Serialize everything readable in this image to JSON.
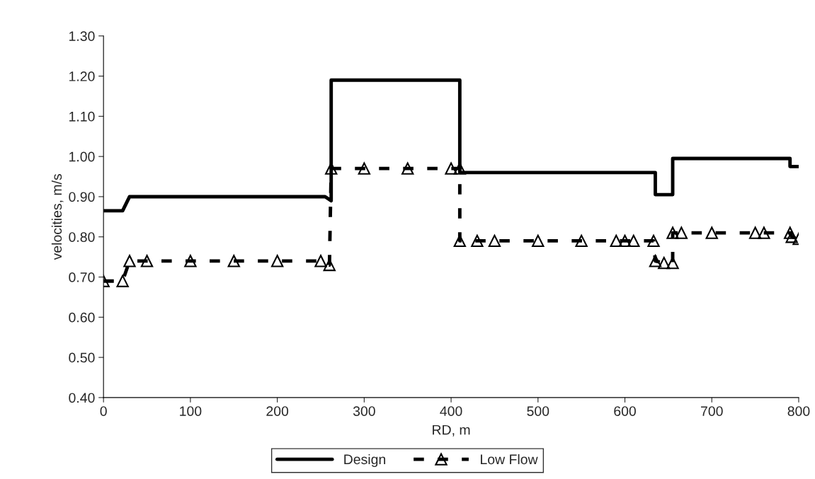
{
  "chart_data": {
    "type": "line",
    "xlabel": "RD, m",
    "ylabel": "velocities, m/s",
    "xlim": [
      0,
      800
    ],
    "xticks": [
      0,
      100,
      200,
      300,
      400,
      500,
      600,
      700,
      800
    ],
    "ylim": [
      0.4,
      1.3
    ],
    "yticks": [
      {
        "value": 0.4,
        "label": "0.40"
      },
      {
        "value": 0.5,
        "label": "0.50"
      },
      {
        "value": 0.6,
        "label": "0.60"
      },
      {
        "value": 0.7,
        "label": "0.70"
      },
      {
        "value": 0.8,
        "label": "0.80"
      },
      {
        "value": 0.9,
        "label": "0.90"
      },
      {
        "value": 1.0,
        "label": "1.00"
      },
      {
        "value": 1.1,
        "label": "1.10"
      },
      {
        "value": 1.2,
        "label": "1.20"
      },
      {
        "value": 1.3,
        "label": "1.30"
      }
    ],
    "legend": "bottom",
    "series": [
      {
        "name": "Design",
        "color": "#000000",
        "line_style": "solid",
        "marker": "none",
        "x": [
          0,
          22,
          30,
          255,
          262,
          262,
          410,
          410,
          635,
          635,
          655,
          655,
          790,
          790,
          800
        ],
        "values": [
          0.865,
          0.865,
          0.9,
          0.9,
          0.89,
          1.19,
          1.19,
          0.96,
          0.96,
          0.905,
          0.905,
          0.995,
          0.995,
          0.975,
          0.975
        ]
      },
      {
        "name": "Low Flow",
        "color": "#000000",
        "line_style": "dashed",
        "marker": "triangle",
        "x": [
          0,
          22,
          30,
          50,
          100,
          150,
          200,
          250,
          260,
          262,
          300,
          350,
          400,
          410,
          410,
          430,
          450,
          500,
          550,
          590,
          600,
          610,
          633,
          635,
          645,
          655,
          655,
          665,
          700,
          750,
          760,
          790,
          792,
          800
        ],
        "values": [
          0.69,
          0.69,
          0.74,
          0.74,
          0.74,
          0.74,
          0.74,
          0.74,
          0.73,
          0.97,
          0.97,
          0.97,
          0.97,
          0.97,
          0.79,
          0.79,
          0.79,
          0.79,
          0.79,
          0.79,
          0.79,
          0.79,
          0.79,
          0.74,
          0.735,
          0.735,
          0.81,
          0.81,
          0.81,
          0.81,
          0.81,
          0.81,
          0.8,
          0.795
        ]
      }
    ]
  }
}
